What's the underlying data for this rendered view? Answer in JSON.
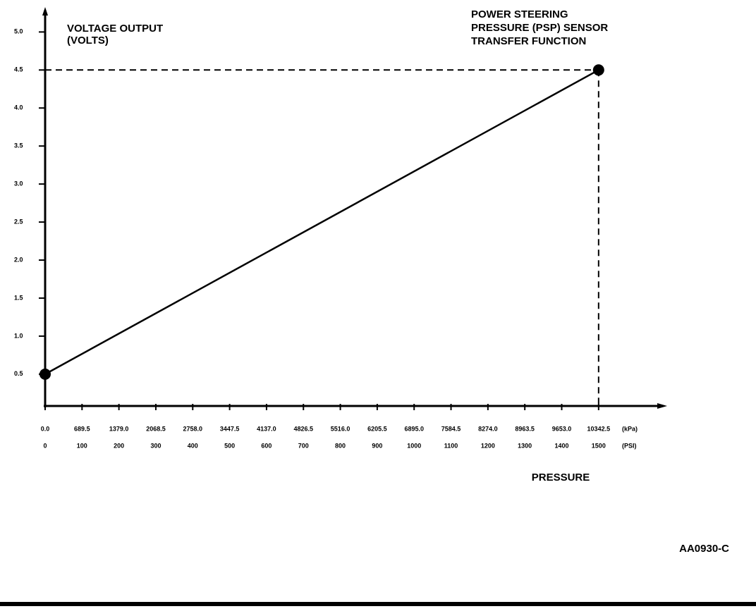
{
  "chart_data": {
    "type": "line",
    "title": [
      "POWER STEERING",
      "PRESSURE (PSP) SENSOR",
      "TRANSFER FUNCTION"
    ],
    "ylabel": [
      "VOLTAGE OUTPUT",
      "(VOLTS)"
    ],
    "xlabel": "PRESSURE",
    "x_unit": "(PSI)",
    "x2_unit": "(kPa)",
    "figure_id": "AA0930-C",
    "x": [
      0,
      1500
    ],
    "series": [
      {
        "name": "PSP",
        "color": "#000000",
        "values": [
          0.5,
          4.5
        ]
      }
    ],
    "xlim": [
      0,
      1680
    ],
    "xticks": [
      0,
      100,
      200,
      300,
      400,
      500,
      600,
      700,
      800,
      900,
      1000,
      1100,
      1200,
      1300,
      1400,
      1500
    ],
    "x2lim": [
      0,
      11583.6
    ],
    "x2ticks": [
      {
        "value": 0,
        "label": "0.0"
      },
      689.5,
      {
        "value": 1379,
        "label": "1379.0"
      },
      2068.5,
      {
        "value": 2758,
        "label": "2758.0"
      },
      3447.5,
      {
        "value": 4137,
        "label": "4137.0"
      },
      4826.5,
      {
        "value": 5516,
        "label": "5516.0"
      },
      6205.5,
      {
        "value": 6895,
        "label": "6895.0"
      },
      7584.5,
      {
        "value": 8274,
        "label": "8274.0"
      },
      8963.5,
      {
        "value": 9653,
        "label": "9653.0"
      },
      10342.5
    ],
    "ylim": [
      0.1,
      5.3
    ],
    "yticks": [
      {
        "value": 5,
        "label": "5.0"
      },
      4.5,
      {
        "value": 4,
        "label": "4.0"
      },
      3.5,
      {
        "value": 3,
        "label": "3.0"
      },
      2.5,
      {
        "value": 2,
        "label": "2.0"
      },
      1.5,
      {
        "value": 1,
        "label": "1.0"
      },
      0.5
    ],
    "guides": true
  }
}
